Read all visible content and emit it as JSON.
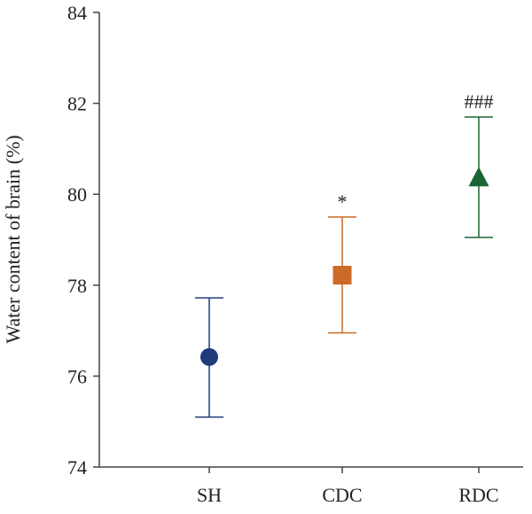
{
  "chart_data": {
    "type": "scatter",
    "title": "",
    "xlabel": "",
    "ylabel": "Water content of brain (%)",
    "ylim": [
      74,
      84
    ],
    "yticks": [
      "74",
      "76",
      "78",
      "80",
      "82",
      "84"
    ],
    "categories": [
      "SH",
      "CDC",
      "RDC"
    ],
    "series": [
      {
        "name": "SH",
        "mean": 76.42,
        "lower": 75.1,
        "upper": 77.72,
        "marker": "circle",
        "color": "#1f3b7a",
        "annotation": ""
      },
      {
        "name": "CDC",
        "mean": 78.22,
        "lower": 76.95,
        "upper": 79.5,
        "marker": "square",
        "color": "#cc6a27",
        "annotation": "*"
      },
      {
        "name": "RDC",
        "mean": 80.35,
        "lower": 79.05,
        "upper": 81.7,
        "marker": "triangle",
        "color": "#1a6633",
        "annotation": "###"
      }
    ]
  }
}
